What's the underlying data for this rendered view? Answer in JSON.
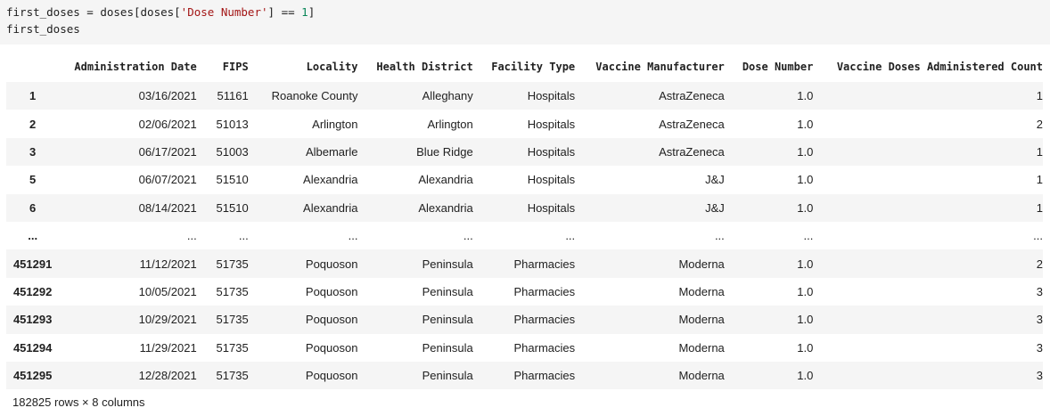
{
  "code": {
    "line1_a": "first_doses = doses[doses[",
    "line1_str": "'Dose Number'",
    "line1_b": "] == ",
    "line1_num": "1",
    "line1_c": "]",
    "line2": "first_doses"
  },
  "table": {
    "columns": [
      "",
      "Administration Date",
      "FIPS",
      "Locality",
      "Health District",
      "Facility Type",
      "Vaccine Manufacturer",
      "Dose Number",
      "Vaccine Doses Administered Count"
    ],
    "rows": [
      [
        "1",
        "03/16/2021",
        "51161",
        "Roanoke County",
        "Alleghany",
        "Hospitals",
        "AstraZeneca",
        "1.0",
        "1"
      ],
      [
        "2",
        "02/06/2021",
        "51013",
        "Arlington",
        "Arlington",
        "Hospitals",
        "AstraZeneca",
        "1.0",
        "2"
      ],
      [
        "3",
        "06/17/2021",
        "51003",
        "Albemarle",
        "Blue Ridge",
        "Hospitals",
        "AstraZeneca",
        "1.0",
        "1"
      ],
      [
        "5",
        "06/07/2021",
        "51510",
        "Alexandria",
        "Alexandria",
        "Hospitals",
        "J&J",
        "1.0",
        "1"
      ],
      [
        "6",
        "08/14/2021",
        "51510",
        "Alexandria",
        "Alexandria",
        "Hospitals",
        "J&J",
        "1.0",
        "1"
      ],
      [
        "...",
        "...",
        "...",
        "...",
        "...",
        "...",
        "...",
        "...",
        "..."
      ],
      [
        "451291",
        "11/12/2021",
        "51735",
        "Poquoson",
        "Peninsula",
        "Pharmacies",
        "Moderna",
        "1.0",
        "2"
      ],
      [
        "451292",
        "10/05/2021",
        "51735",
        "Poquoson",
        "Peninsula",
        "Pharmacies",
        "Moderna",
        "1.0",
        "3"
      ],
      [
        "451293",
        "10/29/2021",
        "51735",
        "Poquoson",
        "Peninsula",
        "Pharmacies",
        "Moderna",
        "1.0",
        "3"
      ],
      [
        "451294",
        "11/29/2021",
        "51735",
        "Poquoson",
        "Peninsula",
        "Pharmacies",
        "Moderna",
        "1.0",
        "3"
      ],
      [
        "451295",
        "12/28/2021",
        "51735",
        "Poquoson",
        "Peninsula",
        "Pharmacies",
        "Moderna",
        "1.0",
        "3"
      ]
    ]
  },
  "footer": "182825 rows × 8 columns"
}
